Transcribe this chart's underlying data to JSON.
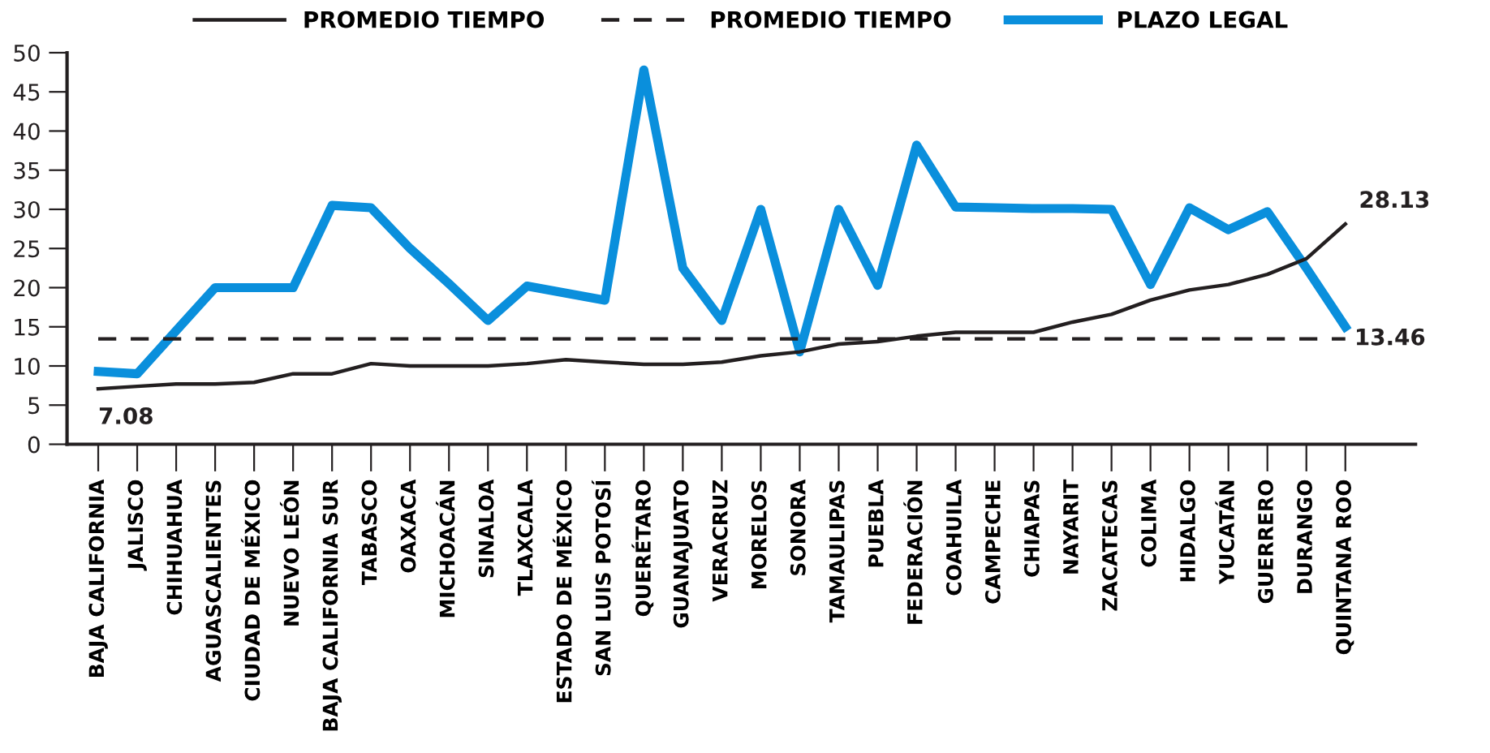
{
  "chart_data": {
    "type": "line",
    "categories": [
      "BAJA CALIFORNIA",
      "JALISCO",
      "CHIHUAHUA",
      "AGUASCALIENTES",
      "CIUDAD DE MÉXICO",
      "NUEVO LEÓN",
      "BAJA CALIFORNIA SUR",
      "TABASCO",
      "OAXACA",
      "MICHOACÁN",
      "SINALOA",
      "TLAXCALA",
      "ESTADO DE MÉXICO",
      "SAN LUIS POTOSÍ",
      "QUERÉTARO",
      "GUANAJUATO",
      "VERACRUZ",
      "MORELOS",
      "SONORA",
      "TAMAULIPAS",
      "PUEBLA",
      "FEDERACIÓN",
      "COAHUILA",
      "CAMPECHE",
      "CHIAPAS",
      "NAYARIT",
      "ZACATECAS",
      "COLIMA",
      "HIDALGO",
      "YUCATÁN",
      "GUERRERO",
      "DURANGO",
      "QUINTANA ROO"
    ],
    "series": [
      {
        "name": "PROMEDIO TIEMPO",
        "color": "#231f20",
        "line_style": "solid",
        "values": [
          7.08,
          7.4,
          7.7,
          7.7,
          7.9,
          9,
          9,
          10.3,
          10,
          10,
          10,
          10.3,
          10.8,
          10.5,
          10.2,
          10.2,
          10.5,
          11.3,
          11.8,
          12.8,
          13.1,
          13.8,
          14.3,
          14.3,
          14.3,
          15.6,
          16.6,
          18.4,
          19.7,
          20.4,
          21.7,
          23.7,
          28.13
        ],
        "value_labels": [
          "7.08",
          null,
          null,
          null,
          null,
          null,
          null,
          null,
          null,
          null,
          null,
          null,
          null,
          null,
          null,
          null,
          null,
          null,
          null,
          null,
          null,
          null,
          null,
          null,
          null,
          null,
          null,
          null,
          null,
          null,
          null,
          null,
          "28.13"
        ]
      },
      {
        "name": "PROMEDIO TIEMPO",
        "color": "#231f20",
        "line_style": "dashed",
        "values": [
          13.46,
          13.46,
          13.46,
          13.46,
          13.46,
          13.46,
          13.46,
          13.46,
          13.46,
          13.46,
          13.46,
          13.46,
          13.46,
          13.46,
          13.46,
          13.46,
          13.46,
          13.46,
          13.46,
          13.46,
          13.46,
          13.46,
          13.46,
          13.46,
          13.46,
          13.46,
          13.46,
          13.46,
          13.46,
          13.46,
          13.46,
          13.46,
          13.46
        ],
        "value_labels": [
          null,
          null,
          null,
          null,
          null,
          null,
          null,
          null,
          null,
          null,
          null,
          null,
          null,
          null,
          null,
          null,
          null,
          null,
          null,
          null,
          null,
          null,
          null,
          null,
          null,
          null,
          null,
          null,
          null,
          null,
          null,
          null,
          "13.46"
        ]
      },
      {
        "name": "PLAZO LEGAL",
        "color": "#0a8fdc",
        "line_style": "solid",
        "values": [
          9.3,
          9,
          14.5,
          20,
          20,
          20,
          30.5,
          30.2,
          25,
          20.5,
          15.8,
          20.2,
          19.3,
          18.4,
          47.8,
          22.5,
          15.8,
          30,
          11.8,
          30,
          20.3,
          38.2,
          30.3,
          30.2,
          30.1,
          30.1,
          30,
          20.4,
          30.2,
          27.4,
          29.7,
          22.5,
          15
        ]
      }
    ],
    "ylim": [
      0,
      50
    ],
    "yticks": [
      0,
      5,
      10,
      15,
      20,
      25,
      30,
      35,
      40,
      45,
      50
    ],
    "grid": false,
    "legend": "top",
    "marker": "none"
  }
}
